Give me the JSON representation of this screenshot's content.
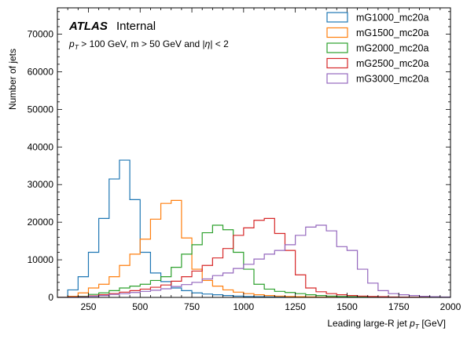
{
  "chart_data": {
    "type": "histogram",
    "title": "",
    "xlabel": "Leading large-R jet",
    "xlabel_math": "p",
    "xlabel_math_sub": "T",
    "xlabel_unit": "[GeV]",
    "ylabel": "Number of jets",
    "xlim": [
      100,
      2000
    ],
    "ylim": [
      0,
      77000
    ],
    "xticks": [
      250,
      500,
      750,
      1000,
      1250,
      1500,
      1750,
      2000
    ],
    "yticks": [
      0,
      10000,
      20000,
      30000,
      40000,
      50000,
      60000,
      70000
    ],
    "grid": false,
    "legend_position": "top-right",
    "bin_edges": [
      100,
      150,
      200,
      250,
      300,
      350,
      400,
      450,
      500,
      550,
      600,
      650,
      700,
      750,
      800,
      850,
      900,
      950,
      1000,
      1050,
      1100,
      1150,
      1200,
      1250,
      1300,
      1350,
      1400,
      1450,
      1500,
      1550,
      1600,
      1650,
      1700,
      1750,
      1800,
      1850,
      1900,
      1950,
      2000
    ],
    "series": [
      {
        "name": "mG1000_mc20a",
        "color": "#1f77b4",
        "values": [
          0,
          2000,
          5500,
          12000,
          21000,
          31500,
          36500,
          26000,
          12000,
          6500,
          4200,
          2500,
          1800,
          1200,
          900,
          700,
          500,
          350,
          250,
          180,
          130,
          100,
          70,
          50,
          35,
          25,
          20,
          15,
          10,
          8,
          6,
          5,
          4,
          3,
          2,
          2,
          1,
          1
        ]
      },
      {
        "name": "mG1500_mc20a",
        "color": "#ff7f0e",
        "values": [
          0,
          300,
          1200,
          2500,
          3500,
          5500,
          8500,
          11500,
          15500,
          20800,
          25000,
          25800,
          15800,
          7500,
          4500,
          3000,
          2000,
          1400,
          1000,
          700,
          500,
          350,
          250,
          180,
          130,
          90,
          60,
          40,
          30,
          20,
          15,
          10,
          8,
          6,
          4,
          3,
          2,
          1
        ]
      },
      {
        "name": "mG2000_mc20a",
        "color": "#2ca02c",
        "values": [
          0,
          100,
          300,
          800,
          1200,
          1800,
          2500,
          3000,
          3500,
          4500,
          5500,
          8000,
          11500,
          14000,
          17200,
          19200,
          18000,
          12000,
          7500,
          3500,
          2200,
          1600,
          1300,
          1000,
          700,
          500,
          350,
          250,
          180,
          120,
          80,
          50,
          30,
          20,
          15,
          10,
          5,
          3
        ]
      },
      {
        "name": "mG2500_mc20a",
        "color": "#d62728",
        "values": [
          0,
          100,
          200,
          400,
          700,
          1000,
          1400,
          1800,
          2200,
          2700,
          3300,
          4300,
          5500,
          7000,
          8500,
          10500,
          13000,
          16500,
          18500,
          20500,
          21000,
          17000,
          12500,
          6000,
          2500,
          1500,
          1000,
          700,
          500,
          350,
          250,
          180,
          120,
          80,
          50,
          30,
          20,
          10
        ]
      },
      {
        "name": "mG3000_mc20a",
        "color": "#9467bd",
        "values": [
          0,
          50,
          100,
          300,
          500,
          800,
          1000,
          1300,
          1600,
          1900,
          2300,
          2900,
          3400,
          4000,
          4900,
          5800,
          6500,
          7700,
          8800,
          10200,
          11500,
          12500,
          14000,
          16500,
          18700,
          19200,
          17700,
          13500,
          12500,
          7500,
          3800,
          1800,
          1000,
          700,
          500,
          300,
          200,
          100
        ]
      }
    ],
    "annotations": {
      "atlas": "ATLAS",
      "status": "Internal",
      "cuts": "p_T > 100 GeV, m > 50 GeV and |η| < 2"
    }
  }
}
